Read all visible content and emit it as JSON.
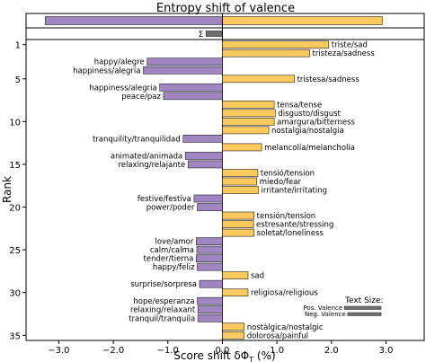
{
  "chart_data": {
    "type": "bar",
    "title": "Entropy shift of valence",
    "xlabel": "Score shift δΦ",
    "xlabel_sub": "T",
    "xlabel_unit": " (%)",
    "ylabel": "Rank",
    "xlim": [
      -3.6,
      3.7
    ],
    "ylim": [
      35.6,
      0.4
    ],
    "x_ticks": [
      -3.0,
      -2.0,
      -1.0,
      0.0,
      1.0,
      2.0,
      3.0
    ],
    "x_tick_labels": [
      "−3.0",
      "−2.0",
      "−1.0",
      "0.0",
      "1.0",
      "2.0",
      "3.0"
    ],
    "y_ticks": [
      1,
      5,
      10,
      15,
      20,
      25,
      30,
      35
    ],
    "y_tick_labels": [
      "1",
      "5",
      "10",
      "15",
      "20",
      "25",
      "30",
      "35"
    ],
    "colors": {
      "positive": "#fbc95e",
      "negative": "#9f85c2",
      "sum": "#6f6f6f",
      "edge": "#222222"
    },
    "totals": [
      {
        "name": "negative-total",
        "value": -3.25
      },
      {
        "name": "positive-total",
        "value": 2.93
      }
    ],
    "sum_bar": {
      "label": "Σ",
      "value": -0.3
    },
    "bars": [
      {
        "rank": 1,
        "value": 1.95,
        "label": "triste/sad"
      },
      {
        "rank": 2,
        "value": 1.6,
        "label": "tristeza/sadness"
      },
      {
        "rank": 3,
        "value": -1.38,
        "label": "happy/alegre"
      },
      {
        "rank": 4,
        "value": -1.45,
        "label": "happiness/alegría"
      },
      {
        "rank": 5,
        "value": 1.32,
        "label": "tristesa/sadness"
      },
      {
        "rank": 6,
        "value": -1.15,
        "label": "happiness/alegria"
      },
      {
        "rank": 7,
        "value": -1.08,
        "label": "peace/paz"
      },
      {
        "rank": 8,
        "value": 0.95,
        "label": "tensa/tense"
      },
      {
        "rank": 9,
        "value": 0.97,
        "label": "disgusto/disgust"
      },
      {
        "rank": 10,
        "value": 0.95,
        "label": "amargura/bitterness"
      },
      {
        "rank": 11,
        "value": 0.85,
        "label": "nostalgia/nostalgia"
      },
      {
        "rank": 12,
        "value": -0.72,
        "label": "tranquility/tranquilidad"
      },
      {
        "rank": 13,
        "value": 0.72,
        "label": "melancolía/melancholia"
      },
      {
        "rank": 14,
        "value": -0.68,
        "label": "animated/animada"
      },
      {
        "rank": 15,
        "value": -0.63,
        "label": "relaxing/relajante"
      },
      {
        "rank": 16,
        "value": 0.65,
        "label": "tensió/tension"
      },
      {
        "rank": 17,
        "value": 0.63,
        "label": "miedo/fear"
      },
      {
        "rank": 18,
        "value": 0.66,
        "label": "irritante/irritating"
      },
      {
        "rank": 19,
        "value": -0.52,
        "label": "festive/festiva"
      },
      {
        "rank": 20,
        "value": -0.46,
        "label": "power/poder"
      },
      {
        "rank": 21,
        "value": 0.58,
        "label": "tensión/tension"
      },
      {
        "rank": 22,
        "value": 0.57,
        "label": "estresante/stressing"
      },
      {
        "rank": 23,
        "value": 0.58,
        "label": "soletat/loneliness"
      },
      {
        "rank": 24,
        "value": -0.48,
        "label": "love/amor"
      },
      {
        "rank": 25,
        "value": -0.47,
        "label": "calm/calma"
      },
      {
        "rank": 26,
        "value": -0.48,
        "label": "tender/tierna"
      },
      {
        "rank": 27,
        "value": -0.46,
        "label": "happy/feliz"
      },
      {
        "rank": 28,
        "value": 0.47,
        "label": "sad"
      },
      {
        "rank": 29,
        "value": -0.42,
        "label": "surprise/sorpresa"
      },
      {
        "rank": 30,
        "value": 0.47,
        "label": "religiosa/religious"
      },
      {
        "rank": 31,
        "value": -0.46,
        "label": "hope/esperanza"
      },
      {
        "rank": 32,
        "value": -0.45,
        "label": "relaxing/relaxant"
      },
      {
        "rank": 33,
        "value": -0.45,
        "label": "tranquil/tranquila"
      },
      {
        "rank": 34,
        "value": 0.4,
        "label": "nostàlgica/nostalgic"
      },
      {
        "rank": 35,
        "value": 0.4,
        "label": "dolorosa/painful"
      }
    ],
    "legend": {
      "title": "Text Size:",
      "items": [
        {
          "label": "Pos. Valence",
          "value": 0.68
        },
        {
          "label": "Neg. Valence",
          "value": 0.62
        }
      ]
    }
  }
}
